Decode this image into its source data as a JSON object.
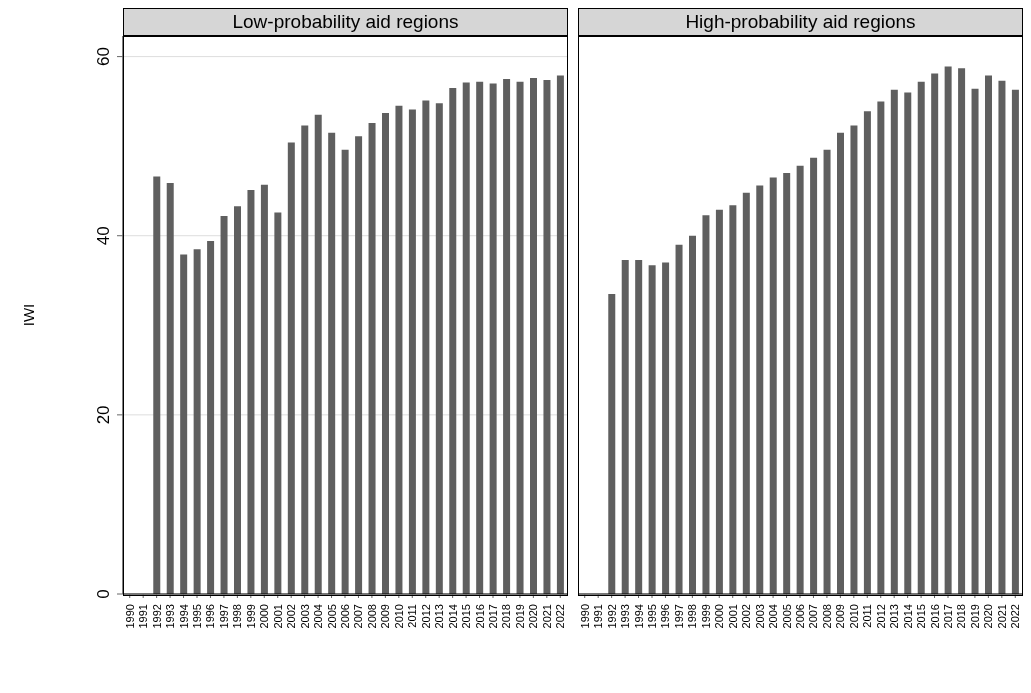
{
  "chart_data": [
    {
      "type": "bar",
      "title": "Low-probability aid regions",
      "ylabel": "IWI",
      "categories": [
        "1990",
        "1991",
        "1992",
        "1993",
        "1994",
        "1995",
        "1996",
        "1997",
        "1998",
        "1999",
        "2000",
        "2001",
        "2002",
        "2003",
        "2004",
        "2005",
        "2006",
        "2007",
        "2008",
        "2009",
        "2010",
        "2011",
        "2012",
        "2013",
        "2014",
        "2015",
        "2016",
        "2017",
        "2018",
        "2019",
        "2020",
        "2021",
        "2022"
      ],
      "values": [
        null,
        null,
        46.6,
        45.9,
        37.9,
        38.5,
        39.4,
        42.2,
        43.3,
        45.1,
        45.7,
        42.6,
        50.4,
        52.3,
        53.5,
        51.5,
        49.6,
        51.1,
        52.6,
        53.7,
        54.5,
        54.1,
        55.1,
        54.8,
        56.5,
        57.1,
        57.2,
        57.0,
        57.5,
        57.2,
        57.6,
        57.4,
        57.9
      ],
      "color": "#5f5f5f",
      "ylim": [
        0,
        62.3
      ],
      "yticks": [
        0,
        20,
        40,
        60
      ],
      "grid": "y"
    },
    {
      "type": "bar",
      "title": "High-probability aid regions",
      "categories": [
        "1990",
        "1991",
        "1992",
        "1993",
        "1994",
        "1995",
        "1996",
        "1997",
        "1998",
        "1999",
        "2000",
        "2001",
        "2002",
        "2003",
        "2004",
        "2005",
        "2006",
        "2007",
        "2008",
        "2009",
        "2010",
        "2011",
        "2012",
        "2013",
        "2014",
        "2015",
        "2016",
        "2017",
        "2018",
        "2019",
        "2020",
        "2021",
        "2022"
      ],
      "values": [
        null,
        null,
        33.5,
        37.3,
        37.3,
        36.7,
        37.0,
        39.0,
        40.0,
        42.3,
        42.9,
        43.4,
        44.8,
        45.6,
        46.5,
        47.0,
        47.8,
        48.7,
        49.6,
        51.5,
        52.3,
        53.9,
        55.0,
        56.3,
        56.0,
        57.2,
        58.1,
        58.9,
        58.7,
        56.4,
        57.9,
        57.3,
        56.3
      ],
      "color": "#5f5f5f",
      "ylim": [
        0,
        62.3
      ],
      "yticks": [
        0,
        20,
        40,
        60
      ],
      "grid": "y",
      "tick_labels": "x"
    }
  ]
}
